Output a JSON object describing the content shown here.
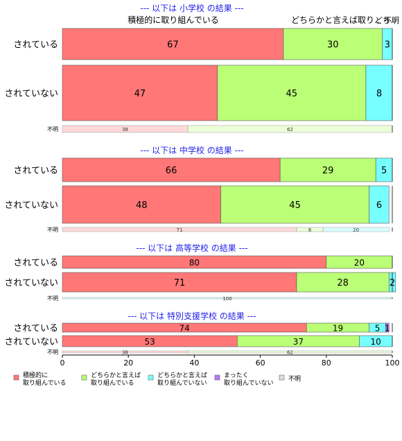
{
  "chart_data": {
    "type": "bar",
    "orientation": "horizontal",
    "stacked": true,
    "xlim": [
      0,
      100
    ],
    "x_ticks": [
      0,
      20,
      40,
      60,
      80,
      100
    ],
    "column_headers": [
      "積極的に取り組んでいる",
      "どちらかと言えば取り..",
      "どち..",
      "不明"
    ],
    "legend": {
      "position": "bottom",
      "items": [
        {
          "label": "積極的に\n取り組んでいる",
          "color": "#ff7777"
        },
        {
          "label": "どちらかと言えば\n取り組んでいる",
          "color": "#bbff77"
        },
        {
          "label": "どちらかと言えば\n取り組んでいない",
          "color": "#77ffff"
        },
        {
          "label": "まったく\n取り組んでいない",
          "color": "#bb77ff"
        },
        {
          "label": "不明",
          "color": "#dddddd"
        }
      ]
    },
    "panels": [
      {
        "title": "--- 以下は 小学校 の結果 ---",
        "rows": [
          {
            "label": "されている",
            "values": [
              67,
              30,
              3,
              0,
              0
            ]
          },
          {
            "label": "されていない",
            "values": [
              47,
              45,
              8,
              0,
              0
            ]
          },
          {
            "label": "不明",
            "values": [
              38,
              62,
              0,
              0,
              0
            ]
          }
        ]
      },
      {
        "title": "--- 以下は 中学校 の結果 ---",
        "rows": [
          {
            "label": "されている",
            "values": [
              66,
              29,
              5,
              0,
              0
            ]
          },
          {
            "label": "されていない",
            "values": [
              48,
              45,
              6,
              0,
              0
            ]
          },
          {
            "label": "不明",
            "values": [
              71,
              8,
              20,
              0,
              0
            ]
          }
        ]
      },
      {
        "title": "--- 以下は 高等学校 の結果 ---",
        "rows": [
          {
            "label": "されている",
            "values": [
              80,
              20,
              0,
              0,
              0
            ]
          },
          {
            "label": "されていない",
            "values": [
              71,
              28,
              2,
              0,
              0
            ]
          },
          {
            "label": "不明",
            "values": [
              0,
              0,
              100,
              0,
              0
            ]
          }
        ]
      },
      {
        "title": "--- 以下は 特別支援学校 の結果 ---",
        "rows": [
          {
            "label": "されている",
            "values": [
              74,
              19,
              5,
              1,
              0
            ]
          },
          {
            "label": "されていない",
            "values": [
              53,
              37,
              10,
              0,
              0
            ]
          },
          {
            "label": "不明",
            "values": [
              38,
              62,
              0,
              0,
              0
            ]
          }
        ]
      }
    ]
  }
}
